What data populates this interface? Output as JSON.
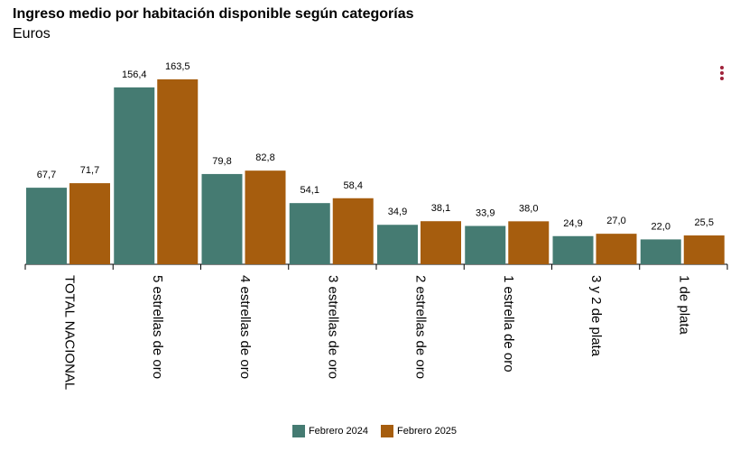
{
  "header": {
    "title": "Ingreso medio por habitación disponible según categorías",
    "subtitle": "Euros"
  },
  "menu": {
    "icon": "vertical-dots-icon",
    "color": "#a0223a"
  },
  "chart_data": {
    "type": "bar",
    "title": "Ingreso medio por habitación disponible según categorías",
    "subtitle": "Euros",
    "categories": [
      "TOTAL NACIONAL",
      "5 estrellas de oro",
      "4 estrellas de oro",
      "3 estrellas de oro",
      "2 estrellas de oro",
      "1 estrella de oro",
      "3 y 2 de plata",
      "1 de plata"
    ],
    "series": [
      {
        "name": "Febrero 2024",
        "color": "#457b72",
        "values": [
          67.7,
          156.4,
          79.8,
          54.1,
          34.9,
          33.9,
          24.9,
          22.0
        ],
        "labels": [
          "67,7",
          "156,4",
          "79,8",
          "54,1",
          "34,9",
          "33,9",
          "24,9",
          "22,0"
        ]
      },
      {
        "name": "Febrero 2025",
        "color": "#a65d0e",
        "values": [
          71.7,
          163.5,
          82.8,
          58.4,
          38.1,
          38.0,
          27.0,
          25.5
        ],
        "labels": [
          "71,7",
          "163,5",
          "82,8",
          "58,4",
          "38,1",
          "38,0",
          "27,0",
          "25,5"
        ]
      }
    ],
    "ylim": [
      0,
      170
    ],
    "grid": false,
    "legend_position": "bottom-center"
  },
  "legend": {
    "items": [
      {
        "label": "Febrero 2024",
        "color": "#457b72"
      },
      {
        "label": "Febrero 2025",
        "color": "#a65d0e"
      }
    ]
  }
}
